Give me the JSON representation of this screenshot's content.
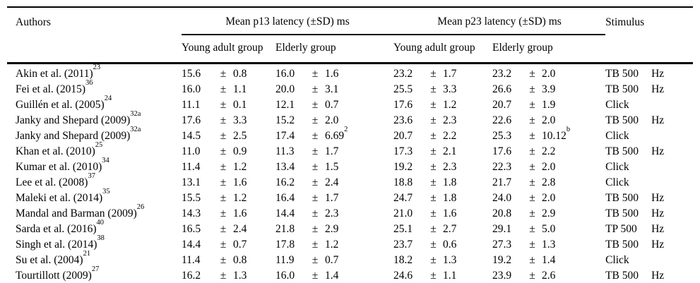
{
  "table": {
    "headers": {
      "authors": "Authors",
      "p13": "Mean p13 latency (±SD) ms",
      "p23": "Mean p23 latency (±SD) ms",
      "young": "Young adult group",
      "elderly": "Elderly group",
      "stimulus": "Stimulus"
    },
    "plus_minus": "±",
    "rows": [
      {
        "author": "Akin et al. (2011)",
        "ref": "23",
        "p13_young": {
          "m": "15.6",
          "sd": "0.8",
          "sup": ""
        },
        "p13_elderly": {
          "m": "16.0",
          "sd": "1.6",
          "sup": ""
        },
        "p23_young": {
          "m": "23.2",
          "sd": "1.7",
          "sup": ""
        },
        "p23_elderly": {
          "m": "23.2",
          "sd": "2.0",
          "sup": ""
        },
        "stimulus": "TB 500",
        "unit": "Hz"
      },
      {
        "author": "Fei et al. (2015)",
        "ref": "36",
        "p13_young": {
          "m": "16.0",
          "sd": "1.1",
          "sup": ""
        },
        "p13_elderly": {
          "m": "20.0",
          "sd": "3.1",
          "sup": ""
        },
        "p23_young": {
          "m": "25.5",
          "sd": "3.3",
          "sup": ""
        },
        "p23_elderly": {
          "m": "26.6",
          "sd": "3.9",
          "sup": ""
        },
        "stimulus": "TB 500",
        "unit": "Hz"
      },
      {
        "author": "Guillén et al. (2005)",
        "ref": "24",
        "p13_young": {
          "m": "11.1",
          "sd": "0.1",
          "sup": ""
        },
        "p13_elderly": {
          "m": "12.1",
          "sd": "0.7",
          "sup": ""
        },
        "p23_young": {
          "m": "17.6",
          "sd": "1.2",
          "sup": ""
        },
        "p23_elderly": {
          "m": "20.7",
          "sd": "1.9",
          "sup": ""
        },
        "stimulus": "Click",
        "unit": ""
      },
      {
        "author": "Janky and Shepard (2009)",
        "ref": "32a",
        "p13_young": {
          "m": "17.6",
          "sd": "3.3",
          "sup": ""
        },
        "p13_elderly": {
          "m": "15.2",
          "sd": "2.0",
          "sup": ""
        },
        "p23_young": {
          "m": "23.6",
          "sd": "2.3",
          "sup": ""
        },
        "p23_elderly": {
          "m": "22.6",
          "sd": "2.0",
          "sup": ""
        },
        "stimulus": "TB 500",
        "unit": "Hz"
      },
      {
        "author": "Janky and Shepard (2009)",
        "ref": "32a",
        "p13_young": {
          "m": "14.5",
          "sd": "2.5",
          "sup": ""
        },
        "p13_elderly": {
          "m": "17.4",
          "sd": "6.69",
          "sup": "2"
        },
        "p23_young": {
          "m": "20.7",
          "sd": "2.2",
          "sup": ""
        },
        "p23_elderly": {
          "m": "25.3",
          "sd": "10.12",
          "sup": "b"
        },
        "stimulus": "Click",
        "unit": ""
      },
      {
        "author": "Khan et al. (2010)",
        "ref": "25",
        "p13_young": {
          "m": "11.0",
          "sd": "0.9",
          "sup": ""
        },
        "p13_elderly": {
          "m": "11.3",
          "sd": "1.7",
          "sup": ""
        },
        "p23_young": {
          "m": "17.3",
          "sd": "2.1",
          "sup": ""
        },
        "p23_elderly": {
          "m": "17.6",
          "sd": "2.2",
          "sup": ""
        },
        "stimulus": "TB 500",
        "unit": "Hz"
      },
      {
        "author": "Kumar et al. (2010)",
        "ref": "34",
        "p13_young": {
          "m": "11.4",
          "sd": "1.2",
          "sup": ""
        },
        "p13_elderly": {
          "m": "13.4",
          "sd": "1.5",
          "sup": ""
        },
        "p23_young": {
          "m": "19.2",
          "sd": "2.3",
          "sup": ""
        },
        "p23_elderly": {
          "m": "22.3",
          "sd": "2.0",
          "sup": ""
        },
        "stimulus": "Click",
        "unit": ""
      },
      {
        "author": "Lee et al. (2008)",
        "ref": "37",
        "p13_young": {
          "m": "13.1",
          "sd": "1.6",
          "sup": ""
        },
        "p13_elderly": {
          "m": "16.2",
          "sd": "2.4",
          "sup": ""
        },
        "p23_young": {
          "m": "18.8",
          "sd": "1.8",
          "sup": ""
        },
        "p23_elderly": {
          "m": "21.7",
          "sd": "2.8",
          "sup": ""
        },
        "stimulus": "Click",
        "unit": ""
      },
      {
        "author": "Maleki et al. (2014)",
        "ref": "35",
        "p13_young": {
          "m": "15.5",
          "sd": "1.2",
          "sup": ""
        },
        "p13_elderly": {
          "m": "16.4",
          "sd": "1.7",
          "sup": ""
        },
        "p23_young": {
          "m": "24.7",
          "sd": "1.8",
          "sup": ""
        },
        "p23_elderly": {
          "m": "24.0",
          "sd": "2.0",
          "sup": ""
        },
        "stimulus": "TB 500",
        "unit": "Hz"
      },
      {
        "author": "Mandal and Barman (2009)",
        "ref": "26",
        "p13_young": {
          "m": "14.3",
          "sd": "1.6",
          "sup": ""
        },
        "p13_elderly": {
          "m": "14.4",
          "sd": "2.3",
          "sup": ""
        },
        "p23_young": {
          "m": "21.0",
          "sd": "1.6",
          "sup": ""
        },
        "p23_elderly": {
          "m": "20.8",
          "sd": "2.9",
          "sup": ""
        },
        "stimulus": "TB 500",
        "unit": "Hz"
      },
      {
        "author": "Sarda et al. (2016)",
        "ref": "40",
        "p13_young": {
          "m": "16.5",
          "sd": "2.4",
          "sup": ""
        },
        "p13_elderly": {
          "m": "21.8",
          "sd": "2.9",
          "sup": ""
        },
        "p23_young": {
          "m": "25.1",
          "sd": "2.7",
          "sup": ""
        },
        "p23_elderly": {
          "m": "29.1",
          "sd": "5.0",
          "sup": ""
        },
        "stimulus": "TP 500",
        "unit": "Hz"
      },
      {
        "author": "Singh et al. (2014)",
        "ref": "38",
        "p13_young": {
          "m": "14.4",
          "sd": "0.7",
          "sup": ""
        },
        "p13_elderly": {
          "m": "17.8",
          "sd": "1.2",
          "sup": ""
        },
        "p23_young": {
          "m": "23.7",
          "sd": "0.6",
          "sup": ""
        },
        "p23_elderly": {
          "m": "27.3",
          "sd": "1.3",
          "sup": ""
        },
        "stimulus": "TB 500",
        "unit": "Hz"
      },
      {
        "author": "Su et al. (2004)",
        "ref": "21",
        "p13_young": {
          "m": "11.4",
          "sd": "0.8",
          "sup": ""
        },
        "p13_elderly": {
          "m": "11.9",
          "sd": "0.7",
          "sup": ""
        },
        "p23_young": {
          "m": "18.2",
          "sd": "1.3",
          "sup": ""
        },
        "p23_elderly": {
          "m": "19.2",
          "sd": "1.4",
          "sup": ""
        },
        "stimulus": "Click",
        "unit": ""
      },
      {
        "author": "Tourtillott (2009)",
        "ref": "27",
        "p13_young": {
          "m": "16.2",
          "sd": "1.3",
          "sup": ""
        },
        "p13_elderly": {
          "m": "16.0",
          "sd": "1.4",
          "sup": ""
        },
        "p23_young": {
          "m": "24.6",
          "sd": "1.1",
          "sup": ""
        },
        "p23_elderly": {
          "m": "23.9",
          "sd": "2.6",
          "sup": ""
        },
        "stimulus": "TB 500",
        "unit": "Hz"
      }
    ]
  }
}
